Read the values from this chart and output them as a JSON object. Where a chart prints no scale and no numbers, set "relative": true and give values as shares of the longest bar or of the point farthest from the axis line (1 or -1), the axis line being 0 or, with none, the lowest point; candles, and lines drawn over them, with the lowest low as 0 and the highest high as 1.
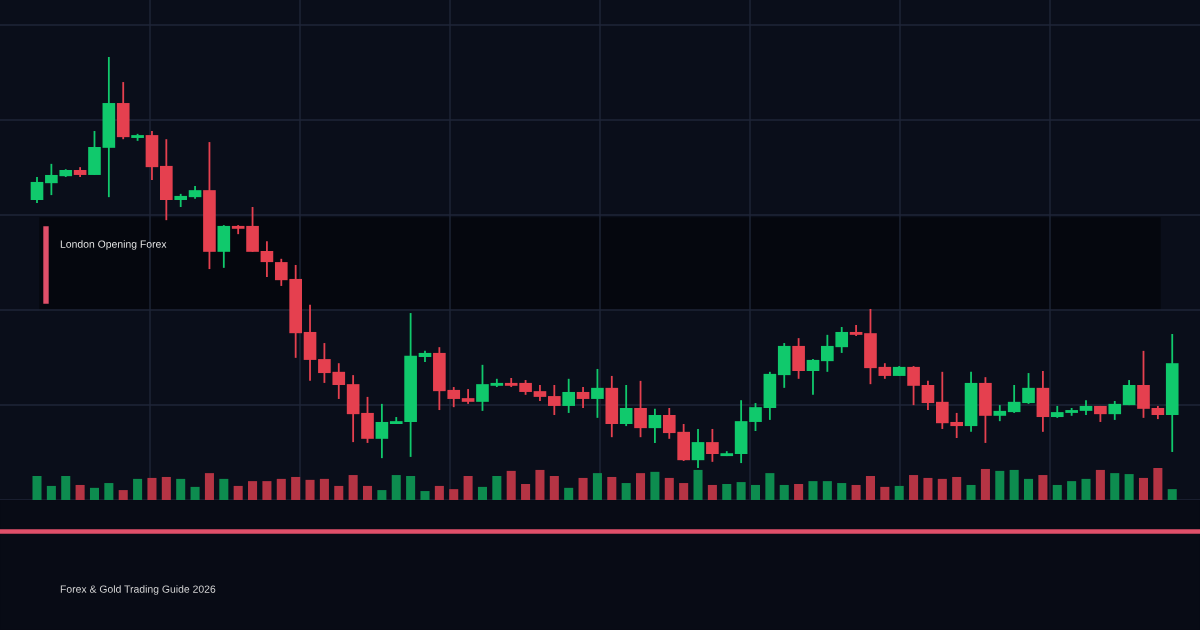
{
  "chart_data": [
    {
      "type": "candlestick",
      "relative": true,
      "grid": true,
      "categories": [
        null,
        null,
        null,
        null,
        null,
        null,
        null,
        null,
        null,
        null,
        null,
        null,
        null,
        null,
        null,
        null,
        null,
        null,
        null,
        null,
        null,
        null,
        null,
        null,
        null,
        null,
        null,
        null,
        null,
        null,
        null,
        null,
        null,
        null,
        null,
        null,
        null,
        null,
        null,
        null,
        null,
        null,
        null,
        null,
        null,
        null,
        null,
        null,
        null,
        null,
        null,
        null,
        null,
        null,
        null,
        null,
        null,
        null,
        null,
        null,
        null,
        null,
        null,
        null,
        null,
        null,
        null,
        null,
        null,
        null,
        null,
        null,
        null,
        null,
        null,
        null,
        null,
        null,
        null,
        null
      ],
      "ohlc": [
        [
          0.652,
          0.708,
          0.645,
          0.696
        ],
        [
          0.693,
          0.74,
          0.664,
          0.713
        ],
        [
          0.71,
          0.727,
          0.708,
          0.725
        ],
        [
          0.725,
          0.732,
          0.708,
          0.713
        ],
        [
          0.713,
          0.82,
          0.713,
          0.781
        ],
        [
          0.779,
          1,
          0.659,
          0.888
        ],
        [
          0.888,
          0.939,
          0.8,
          0.805
        ],
        [
          0.803,
          0.813,
          0.796,
          0.81
        ],
        [
          0.81,
          0.82,
          0.701,
          0.732
        ],
        [
          0.735,
          0.8,
          0.603,
          0.652
        ],
        [
          0.652,
          0.667,
          0.635,
          0.662
        ],
        [
          0.659,
          0.686,
          0.655,
          0.676
        ],
        [
          0.676,
          0.793,
          0.484,
          0.526
        ],
        [
          0.526,
          0.591,
          0.487,
          0.589
        ],
        [
          0.589,
          0.591,
          0.569,
          0.582
        ],
        [
          0.589,
          0.635,
          0.526,
          0.526
        ],
        [
          0.528,
          0.552,
          0.465,
          0.501
        ],
        [
          0.501,
          0.509,
          0.443,
          0.457
        ],
        [
          0.46,
          0.494,
          0.268,
          0.328
        ],
        [
          0.331,
          0.397,
          0.212,
          0.263
        ],
        [
          0.265,
          0.304,
          0.207,
          0.231
        ],
        [
          0.234,
          0.255,
          0.168,
          0.202
        ],
        [
          0.204,
          0.226,
          0.063,
          0.131
        ],
        [
          0.134,
          0.173,
          0.061,
          0.071
        ],
        [
          0.071,
          0.156,
          0.024,
          0.112
        ],
        [
          0.107,
          0.124,
          0.107,
          0.114
        ],
        [
          0.112,
          0.377,
          0.027,
          0.273
        ],
        [
          0.27,
          0.285,
          0.258,
          0.28
        ],
        [
          0.28,
          0.294,
          0.141,
          0.187
        ],
        [
          0.19,
          0.197,
          0.148,
          0.168
        ],
        [
          0.17,
          0.192,
          0.156,
          0.161
        ],
        [
          0.161,
          0.251,
          0.139,
          0.204
        ],
        [
          0.2,
          0.217,
          0.197,
          0.207
        ],
        [
          0.207,
          0.219,
          0.197,
          0.2
        ],
        [
          0.207,
          0.214,
          0.178,
          0.185
        ],
        [
          0.187,
          0.202,
          0.163,
          0.173
        ],
        [
          0.175,
          0.202,
          0.129,
          0.151
        ],
        [
          0.151,
          0.217,
          0.134,
          0.185
        ],
        [
          0.185,
          0.197,
          0.146,
          0.168
        ],
        [
          0.168,
          0.241,
          0.122,
          0.195
        ],
        [
          0.195,
          0.224,
          0.075,
          0.107
        ],
        [
          0.107,
          0.202,
          0.102,
          0.146
        ],
        [
          0.146,
          0.212,
          0.075,
          0.097
        ],
        [
          0.097,
          0.144,
          0.061,
          0.129
        ],
        [
          0.129,
          0.146,
          0.071,
          0.085
        ],
        [
          0.088,
          0.107,
          0.017,
          0.019
        ],
        [
          0.019,
          0.095,
          0,
          0.063
        ],
        [
          0.063,
          0.095,
          0.015,
          0.034
        ],
        [
          0.029,
          0.041,
          0.029,
          0.036
        ],
        [
          0.034,
          0.165,
          0.012,
          0.114
        ],
        [
          0.112,
          0.158,
          0.09,
          0.148
        ],
        [
          0.146,
          0.234,
          0.117,
          0.229
        ],
        [
          0.226,
          0.304,
          0.195,
          0.297
        ],
        [
          0.297,
          0.316,
          0.217,
          0.236
        ],
        [
          0.236,
          0.265,
          0.178,
          0.263
        ],
        [
          0.26,
          0.324,
          0.234,
          0.297
        ],
        [
          0.294,
          0.343,
          0.28,
          0.331
        ],
        [
          0.331,
          0.348,
          0.321,
          0.324
        ],
        [
          0.328,
          0.387,
          0.204,
          0.243
        ],
        [
          0.246,
          0.255,
          0.217,
          0.224
        ],
        [
          0.224,
          0.248,
          0.224,
          0.246
        ],
        [
          0.246,
          0.248,
          0.153,
          0.2
        ],
        [
          0.202,
          0.212,
          0.141,
          0.158
        ],
        [
          0.161,
          0.234,
          0.095,
          0.109
        ],
        [
          0.112,
          0.134,
          0.073,
          0.102
        ],
        [
          0.102,
          0.234,
          0.088,
          0.207
        ],
        [
          0.207,
          0.221,
          0.061,
          0.127
        ],
        [
          0.127,
          0.153,
          0.114,
          0.139
        ],
        [
          0.136,
          0.202,
          0.134,
          0.161
        ],
        [
          0.158,
          0.231,
          0.156,
          0.195
        ],
        [
          0.195,
          0.236,
          0.088,
          0.124
        ],
        [
          0.124,
          0.151,
          0.122,
          0.136
        ],
        [
          0.134,
          0.146,
          0.127,
          0.141
        ],
        [
          0.139,
          0.165,
          0.129,
          0.151
        ],
        [
          0.151,
          0.151,
          0.112,
          0.131
        ],
        [
          0.131,
          0.163,
          0.117,
          0.156
        ],
        [
          0.153,
          0.214,
          0.153,
          0.202
        ],
        [
          0.202,
          0.285,
          0.122,
          0.144
        ],
        [
          0.146,
          0.151,
          0.119,
          0.129
        ],
        [
          0.129,
          0.326,
          0.039,
          0.255
        ]
      ],
      "colors": [
        "#10c96c",
        "#10c96c",
        "#10c96c",
        "#e5404f",
        "#10c96c",
        "#10c96c",
        "#e5404f",
        "#10c96c",
        "#e5404f",
        "#e5404f",
        "#10c96c",
        "#10c96c",
        "#e5404f",
        "#10c96c",
        "#e5404f",
        "#e5404f",
        "#e5404f",
        "#e5404f",
        "#e5404f",
        "#e5404f",
        "#e5404f",
        "#e5404f",
        "#e5404f",
        "#e5404f",
        "#10c96c",
        "#10c96c",
        "#10c96c",
        "#10c96c",
        "#e5404f",
        "#e5404f",
        "#e5404f",
        "#10c96c",
        "#10c96c",
        "#e5404f",
        "#e5404f",
        "#e5404f",
        "#e5404f",
        "#10c96c",
        "#e5404f",
        "#10c96c",
        "#e5404f",
        "#10c96c",
        "#e5404f",
        "#10c96c",
        "#e5404f",
        "#e5404f",
        "#10c96c",
        "#e5404f",
        "#10c96c",
        "#10c96c",
        "#10c96c",
        "#10c96c",
        "#10c96c",
        "#e5404f",
        "#10c96c",
        "#10c96c",
        "#10c96c",
        "#e5404f",
        "#e5404f",
        "#e5404f",
        "#10c96c",
        "#e5404f",
        "#e5404f",
        "#e5404f",
        "#e5404f",
        "#10c96c",
        "#e5404f",
        "#10c96c",
        "#10c96c",
        "#10c96c",
        "#e5404f",
        "#10c96c",
        "#10c96c",
        "#10c96c",
        "#e5404f",
        "#10c96c",
        "#10c96c",
        "#e5404f",
        "#e5404f",
        "#10c96c"
      ],
      "annotations": [
        "London Opening Forex",
        "Forex & Gold Trading Guide 2026"
      ]
    },
    {
      "type": "bar",
      "relative": true,
      "categories": [
        null,
        null,
        null,
        null,
        null,
        null,
        null,
        null,
        null,
        null,
        null,
        null,
        null,
        null,
        null,
        null,
        null,
        null,
        null,
        null,
        null,
        null,
        null,
        null,
        null,
        null,
        null,
        null,
        null,
        null,
        null,
        null,
        null,
        null,
        null,
        null,
        null,
        null,
        null,
        null,
        null,
        null,
        null,
        null,
        null,
        null,
        null,
        null,
        null,
        null,
        null,
        null,
        null,
        null,
        null,
        null,
        null,
        null,
        null,
        null,
        null,
        null,
        null,
        null,
        null,
        null,
        null,
        null,
        null,
        null,
        null,
        null,
        null,
        null,
        null,
        null,
        null,
        null,
        null,
        null
      ],
      "values": [
        0.75,
        0.44,
        0.75,
        0.47,
        0.38,
        0.53,
        0.31,
        0.66,
        0.69,
        0.72,
        0.66,
        0.41,
        0.84,
        0.66,
        0.44,
        0.59,
        0.59,
        0.66,
        0.72,
        0.63,
        0.66,
        0.44,
        0.78,
        0.44,
        0.31,
        0.78,
        0.75,
        0.28,
        0.44,
        0.34,
        0.75,
        0.41,
        0.75,
        0.91,
        0.5,
        0.94,
        0.75,
        0.38,
        0.69,
        0.84,
        0.72,
        0.53,
        0.84,
        0.88,
        0.69,
        0.53,
        0.94,
        0.47,
        0.5,
        0.56,
        0.47,
        0.84,
        0.47,
        0.5,
        0.59,
        0.59,
        0.53,
        0.47,
        0.75,
        0.41,
        0.44,
        0.78,
        0.69,
        0.66,
        0.72,
        0.47,
        0.97,
        0.91,
        0.94,
        0.66,
        0.78,
        0.47,
        0.59,
        0.66,
        0.94,
        0.84,
        0.81,
        0.69,
        1,
        0.34
      ],
      "colors": [
        "#0d8c4f",
        "#0d8c4f",
        "#0d8c4f",
        "#b53444",
        "#0d8c4f",
        "#0d8c4f",
        "#b53444",
        "#0d8c4f",
        "#b53444",
        "#b53444",
        "#0d8c4f",
        "#0d8c4f",
        "#b53444",
        "#0d8c4f",
        "#b53444",
        "#b53444",
        "#b53444",
        "#b53444",
        "#b53444",
        "#b53444",
        "#b53444",
        "#b53444",
        "#b53444",
        "#b53444",
        "#0d8c4f",
        "#0d8c4f",
        "#0d8c4f",
        "#0d8c4f",
        "#b53444",
        "#b53444",
        "#b53444",
        "#0d8c4f",
        "#0d8c4f",
        "#b53444",
        "#b53444",
        "#b53444",
        "#b53444",
        "#0d8c4f",
        "#b53444",
        "#0d8c4f",
        "#b53444",
        "#0d8c4f",
        "#b53444",
        "#0d8c4f",
        "#b53444",
        "#b53444",
        "#0d8c4f",
        "#b53444",
        "#0d8c4f",
        "#0d8c4f",
        "#0d8c4f",
        "#0d8c4f",
        "#0d8c4f",
        "#b53444",
        "#0d8c4f",
        "#0d8c4f",
        "#0d8c4f",
        "#b53444",
        "#b53444",
        "#b53444",
        "#0d8c4f",
        "#b53444",
        "#b53444",
        "#b53444",
        "#b53444",
        "#0d8c4f",
        "#b53444",
        "#0d8c4f",
        "#0d8c4f",
        "#0d8c4f",
        "#b53444",
        "#0d8c4f",
        "#0d8c4f",
        "#0d8c4f",
        "#b53444",
        "#0d8c4f",
        "#0d8c4f",
        "#b53444",
        "#b53444",
        "#0d8c4f"
      ]
    }
  ]
}
